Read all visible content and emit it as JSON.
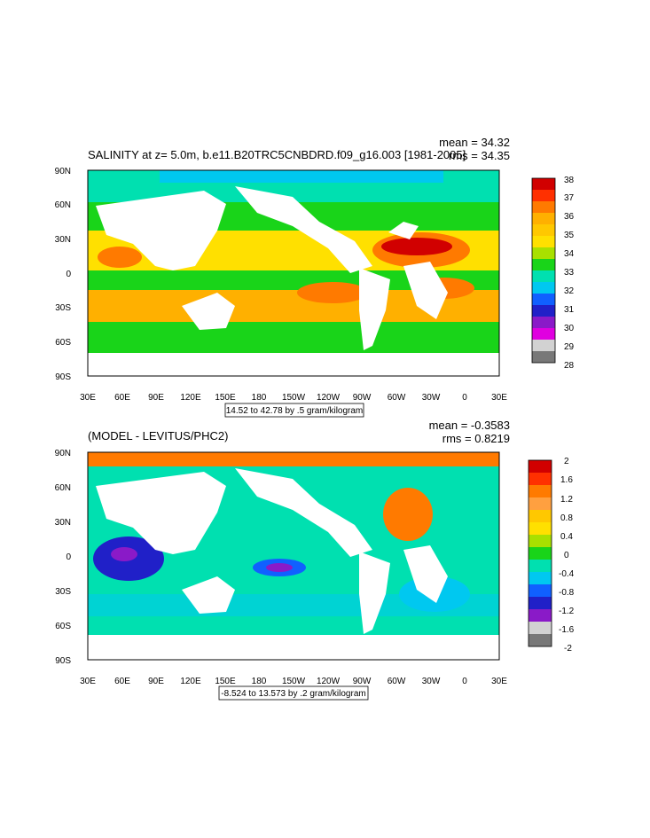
{
  "panel1": {
    "title": "SALINITY at z=   5.0m, b.e11.B20TRC5CNBDRD.f09_g16.003 [1981-2005]",
    "mean_text": "mean = 34.32",
    "rms_text": "rms = 34.35",
    "range_text": "14.52 to 42.78 by .5 gram/kilogram",
    "colorbar_labels": [
      "38",
      "37",
      "36",
      "35",
      "34",
      "33",
      "32",
      "31",
      "30",
      "29",
      "28"
    ],
    "colorbar_colors": [
      "#d10000",
      "#ff3000",
      "#ff7a00",
      "#ffb000",
      "#ffe000",
      "#a8e000",
      "#19d419",
      "#00e0b0",
      "#00c8f0",
      "#1060ff",
      "#2020c8",
      "#8a1ac8",
      "#e000e0",
      "#d2d2d2",
      "#787878"
    ]
  },
  "panel2": {
    "title": "(MODEL - LEVITUS/PHC2)",
    "mean_text": "mean = -0.3583",
    "rms_text": "rms = 0.8219",
    "range_text": "-8.524 to 13.573 by .2 gram/kilogram",
    "colorbar_labels": [
      "2",
      "1.6",
      "1.2",
      "0.8",
      "0.4",
      "0",
      "-0.4",
      "-0.8",
      "-1.2",
      "-1.6",
      "-2"
    ],
    "colorbar_colors": [
      "#d10000",
      "#ff3000",
      "#ff7a00",
      "#ffa040",
      "#ffe000",
      "#a8e000",
      "#19d419",
      "#00e0b0",
      "#00c8f0",
      "#1060ff",
      "#2020c8",
      "#8a1ac8",
      "#e000e0",
      "#d2d2d2",
      "#787878"
    ]
  },
  "axes": {
    "lat_labels": [
      "90N",
      "60N",
      "30N",
      "0",
      "30S",
      "60S",
      "90S"
    ],
    "lon_labels": [
      "30E",
      "60E",
      "90E",
      "120E",
      "150E",
      "180",
      "150W",
      "120W",
      "90W",
      "60W",
      "30W",
      "0",
      "30E"
    ]
  }
}
